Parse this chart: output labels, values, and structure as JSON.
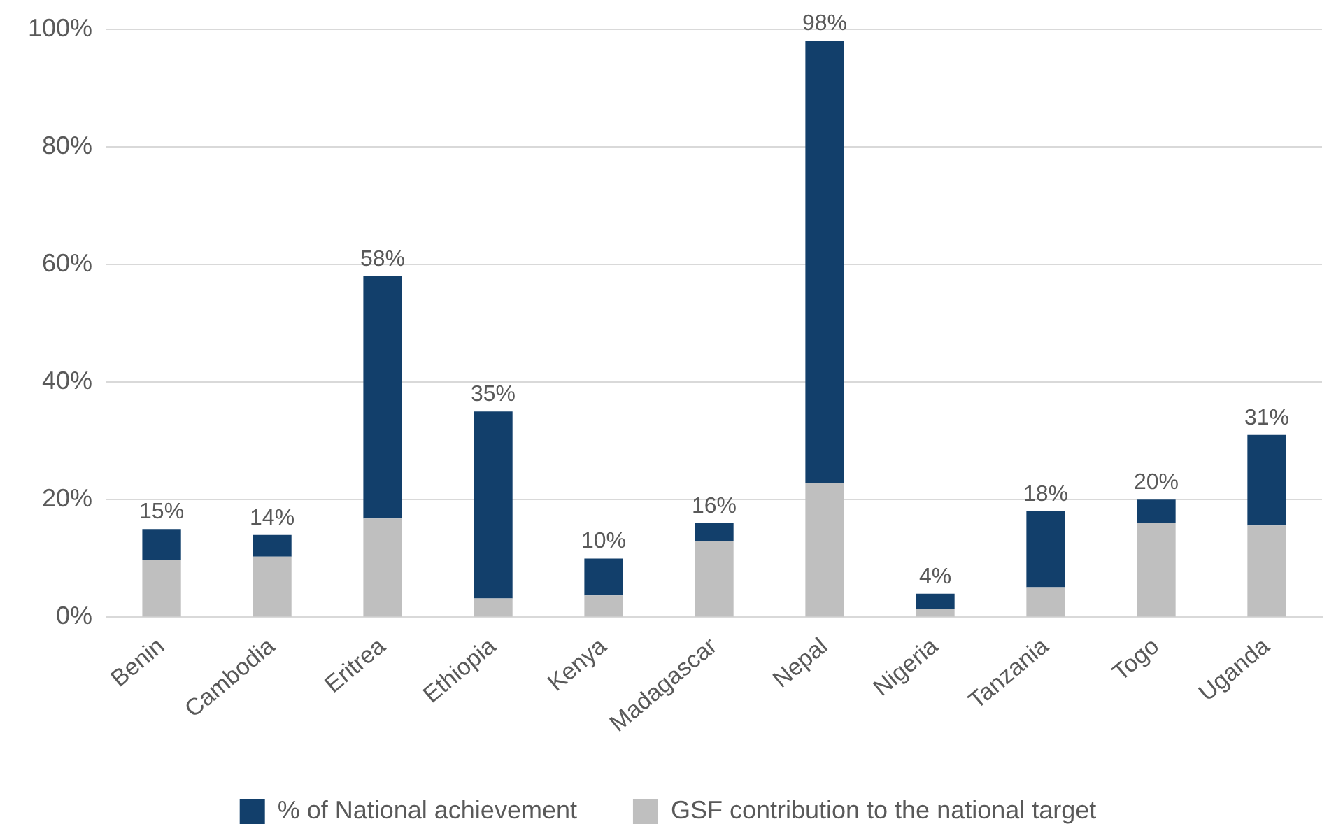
{
  "chart_data": {
    "type": "bar",
    "stacked": true,
    "categories": [
      "Benin",
      "Cambodia",
      "Eritrea",
      "Ethiopia",
      "Kenya",
      "Madagascar",
      "Nepal",
      "Nigeria",
      "Tanzania",
      "Togo",
      "Uganda"
    ],
    "series": [
      {
        "name": "GSF contribution to the national target",
        "color": "#bfbfbf",
        "values": [
          9.7,
          10.3,
          16.8,
          3.2,
          3.7,
          12.9,
          22.8,
          1.4,
          5.1,
          16.1,
          15.6
        ]
      },
      {
        "name": "% of National achievement",
        "color": "#123f6b",
        "values": [
          5.3,
          3.7,
          41.2,
          31.8,
          6.3,
          3.1,
          75.2,
          2.6,
          12.9,
          3.9,
          15.4
        ]
      }
    ],
    "totals": [
      "15%",
      "14%",
      "58%",
      "35%",
      "10%",
      "16%",
      "98%",
      "4%",
      "18%",
      "20%",
      "31%"
    ],
    "ylim": [
      0,
      100
    ],
    "yticks": [
      {
        "value": 0,
        "label": "0%"
      },
      {
        "value": 20,
        "label": "20%"
      },
      {
        "value": 40,
        "label": "40%"
      },
      {
        "value": 60,
        "label": "60%"
      },
      {
        "value": 80,
        "label": "80%"
      },
      {
        "value": 100,
        "label": "100%"
      }
    ],
    "grid": "y",
    "legend": "bottom"
  }
}
